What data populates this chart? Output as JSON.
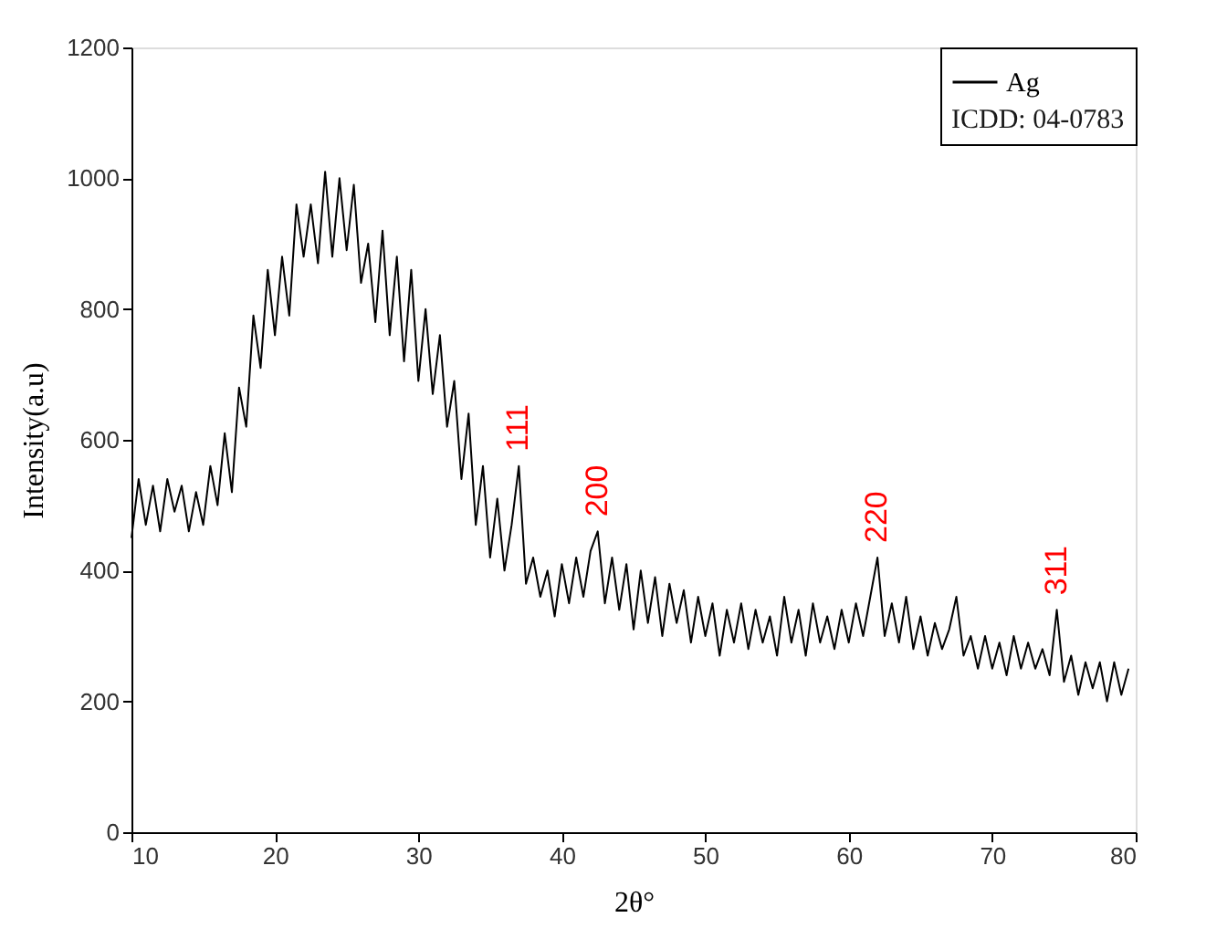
{
  "chart_data": {
    "type": "line",
    "xlabel": "2θ°",
    "ylabel": "Intensity(a.u)",
    "legend_title": "ICDD: 04-0783",
    "xlim": [
      10,
      80
    ],
    "ylim": [
      0,
      1200
    ],
    "xticks": [
      10,
      20,
      30,
      40,
      50,
      60,
      70,
      80
    ],
    "yticks": [
      0,
      200,
      400,
      600,
      800,
      1000,
      1200
    ],
    "grid": false,
    "legend": "top right",
    "marker": "none",
    "line_style": "solid",
    "annotations": [
      {
        "text": "111",
        "x": 37,
        "y": 560
      },
      {
        "text": "200",
        "x": 42.5,
        "y": 460
      },
      {
        "text": "220",
        "x": 62,
        "y": 420
      },
      {
        "text": "311",
        "x": 74.5,
        "y": 340
      }
    ],
    "series": [
      {
        "name": "Ag",
        "color": "#000000",
        "x": [
          10,
          10.5,
          11,
          11.5,
          12,
          12.5,
          13,
          13.5,
          14,
          14.5,
          15,
          15.5,
          16,
          16.5,
          17,
          17.5,
          18,
          18.5,
          19,
          19.5,
          20,
          20.5,
          21,
          21.5,
          22,
          22.5,
          23,
          23.5,
          24,
          24.5,
          25,
          25.5,
          26,
          26.5,
          27,
          27.5,
          28,
          28.5,
          29,
          29.5,
          30,
          30.5,
          31,
          31.5,
          32,
          32.5,
          33,
          33.5,
          34,
          34.5,
          35,
          35.5,
          36,
          36.5,
          37,
          37.5,
          38,
          38.5,
          39,
          39.5,
          40,
          40.5,
          41,
          41.5,
          42,
          42.5,
          43,
          43.5,
          44,
          44.5,
          45,
          45.5,
          46,
          46.5,
          47,
          47.5,
          48,
          48.5,
          49,
          49.5,
          50,
          50.5,
          51,
          51.5,
          52,
          52.5,
          53,
          53.5,
          54,
          54.5,
          55,
          55.5,
          56,
          56.5,
          57,
          57.5,
          58,
          58.5,
          59,
          59.5,
          60,
          60.5,
          61,
          61.5,
          62,
          62.5,
          63,
          63.5,
          64,
          64.5,
          65,
          65.5,
          66,
          66.5,
          67,
          67.5,
          68,
          68.5,
          69,
          69.5,
          70,
          70.5,
          71,
          71.5,
          72,
          72.5,
          73,
          73.5,
          74,
          74.5,
          75,
          75.5,
          76,
          76.5,
          77,
          77.5,
          78,
          78.5,
          79,
          79.5
        ],
        "values": [
          450,
          540,
          470,
          530,
          460,
          540,
          490,
          530,
          460,
          520,
          470,
          560,
          500,
          610,
          520,
          680,
          620,
          790,
          710,
          860,
          760,
          880,
          790,
          960,
          880,
          960,
          870,
          1010,
          880,
          1000,
          890,
          990,
          840,
          900,
          780,
          920,
          760,
          880,
          720,
          860,
          690,
          800,
          670,
          760,
          620,
          690,
          540,
          640,
          470,
          560,
          420,
          510,
          400,
          470,
          560,
          380,
          420,
          360,
          400,
          330,
          410,
          350,
          420,
          360,
          430,
          460,
          350,
          420,
          340,
          410,
          310,
          400,
          320,
          390,
          300,
          380,
          320,
          370,
          290,
          360,
          300,
          350,
          270,
          340,
          290,
          350,
          280,
          340,
          290,
          330,
          270,
          360,
          290,
          340,
          270,
          350,
          290,
          330,
          280,
          340,
          290,
          350,
          300,
          360,
          420,
          300,
          350,
          290,
          360,
          280,
          330,
          270,
          320,
          280,
          310,
          360,
          270,
          300,
          250,
          300,
          250,
          290,
          240,
          300,
          250,
          290,
          250,
          280,
          240,
          340,
          230,
          270,
          210,
          260,
          220,
          260,
          200,
          260,
          210,
          250
        ]
      }
    ]
  }
}
